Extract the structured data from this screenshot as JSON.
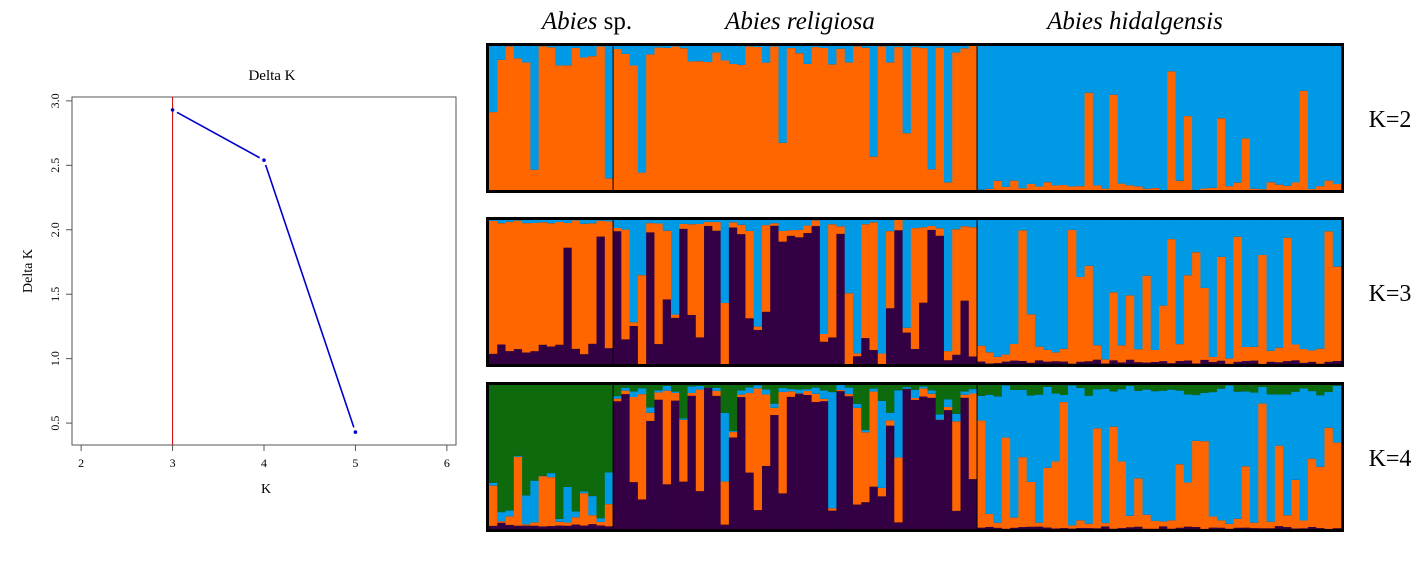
{
  "colors": {
    "orange": "#ff6600",
    "blue": "#0099e6",
    "purple": "#330044",
    "green": "#0d6b0d",
    "deltaLine": "#0000cc",
    "refLine": "#cc0000"
  },
  "chart_data": [
    {
      "type": "line",
      "title": "Delta K",
      "xlabel": "K",
      "ylabel": "Delta K",
      "x": [
        3,
        4,
        5
      ],
      "y": [
        2.93,
        2.54,
        0.43
      ],
      "xlim": [
        1.9,
        6.1
      ],
      "ylim": [
        0.33,
        3.03
      ],
      "xticks": [
        "2",
        "3",
        "4",
        "5",
        "6"
      ],
      "yticks": [
        "0.5",
        "1.0",
        "1.5",
        "2.0",
        "2.5",
        "3.0"
      ],
      "vline": 3
    },
    {
      "type": "bar",
      "subtype": "stacked-admixture",
      "populations": [
        {
          "name": "Abies",
          "suffix": " sp.",
          "count": 15
        },
        {
          "name": "Abies religiosa",
          "suffix": "",
          "count": 44
        },
        {
          "name": "Abies hidalgensis",
          "suffix": "",
          "count": 44
        }
      ],
      "panels": [
        {
          "label": "K=2",
          "clusters": [
            "orange",
            "blue"
          ]
        },
        {
          "label": "K=3",
          "clusters": [
            "purple",
            "orange",
            "blue"
          ]
        },
        {
          "label": "K=4",
          "clusters": [
            "purple",
            "orange",
            "blue",
            "green"
          ]
        }
      ]
    }
  ]
}
